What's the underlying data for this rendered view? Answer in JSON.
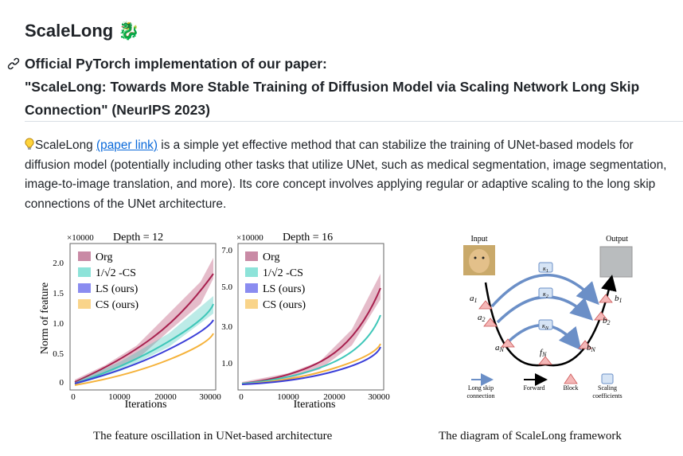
{
  "title": "ScaleLong",
  "title_icon": "dragon-emoji",
  "headline": {
    "line1": "Official PyTorch implementation of our paper:",
    "line2": "\"ScaleLong: Towards More Stable Training of Diffusion Model via Scaling Network Long Skip",
    "line3": "Connection\" (NeurIPS 2023)"
  },
  "intro": {
    "lead": "ScaleLong ",
    "link_text": "(paper link)",
    "rest": " is a simple yet effective method that can stabilize the training of UNet-based models for diffusion model (potentially including other tasks that utilize UNet, such as medical segmentation, image segmentation, image-to-image translation, and more). Its core concept involves applying regular or adaptive scaling to the long skip connections of the UNet architecture."
  },
  "figure_left": {
    "caption": "The feature oscillation in UNet-based architecture",
    "plot1": {
      "multiplier": "×10000",
      "title": "Depth = 12",
      "yticks": [
        "2.0",
        "1.5",
        "1.0",
        "0.5",
        "0"
      ],
      "xticks": [
        "0",
        "10000",
        "20000",
        "30000"
      ],
      "xlabel": "Iterations",
      "ylabel": "Norm of feature"
    },
    "plot2": {
      "multiplier": "×10000",
      "title": "Depth = 16",
      "yticks": [
        "7.0",
        "5.0",
        "3.0",
        "1.0"
      ],
      "xticks": [
        "0",
        "10000",
        "20000",
        "30000"
      ],
      "xlabel": "Iterations"
    },
    "legend": [
      "Org",
      "1/√2 -CS",
      "LS (ours)",
      "CS (ours)"
    ],
    "colors": {
      "org": "#a8214f",
      "cs_sqrt": "#3fc7b9",
      "ls": "#3b3fd8",
      "cs": "#f5b23a"
    }
  },
  "figure_right": {
    "caption": "The diagram of ScaleLong framework",
    "input_label": "Input",
    "output_label": "Output",
    "labels": {
      "a1": "a",
      "a1_sub": "1",
      "a2": "a",
      "a2_sub": "2",
      "aN": "a",
      "aN_sub": "N",
      "b1": "b",
      "b1_sub": "1",
      "b2": "b",
      "b2_sub": "2",
      "bN": "b",
      "bN_sub": "N",
      "fN": "f",
      "fN_sub": "N",
      "k1": "κ",
      "k1_sub": "1",
      "k2": "κ",
      "k2_sub": "2",
      "kN": "κ",
      "kN_sub": "N"
    },
    "legend": {
      "skip": "Long skip connection",
      "skip_l1": "Long skip",
      "skip_l2": "connection",
      "forward": "Forward",
      "block": "Block",
      "scaling_l1": "Scaling",
      "scaling_l2": "coefficients"
    }
  }
}
